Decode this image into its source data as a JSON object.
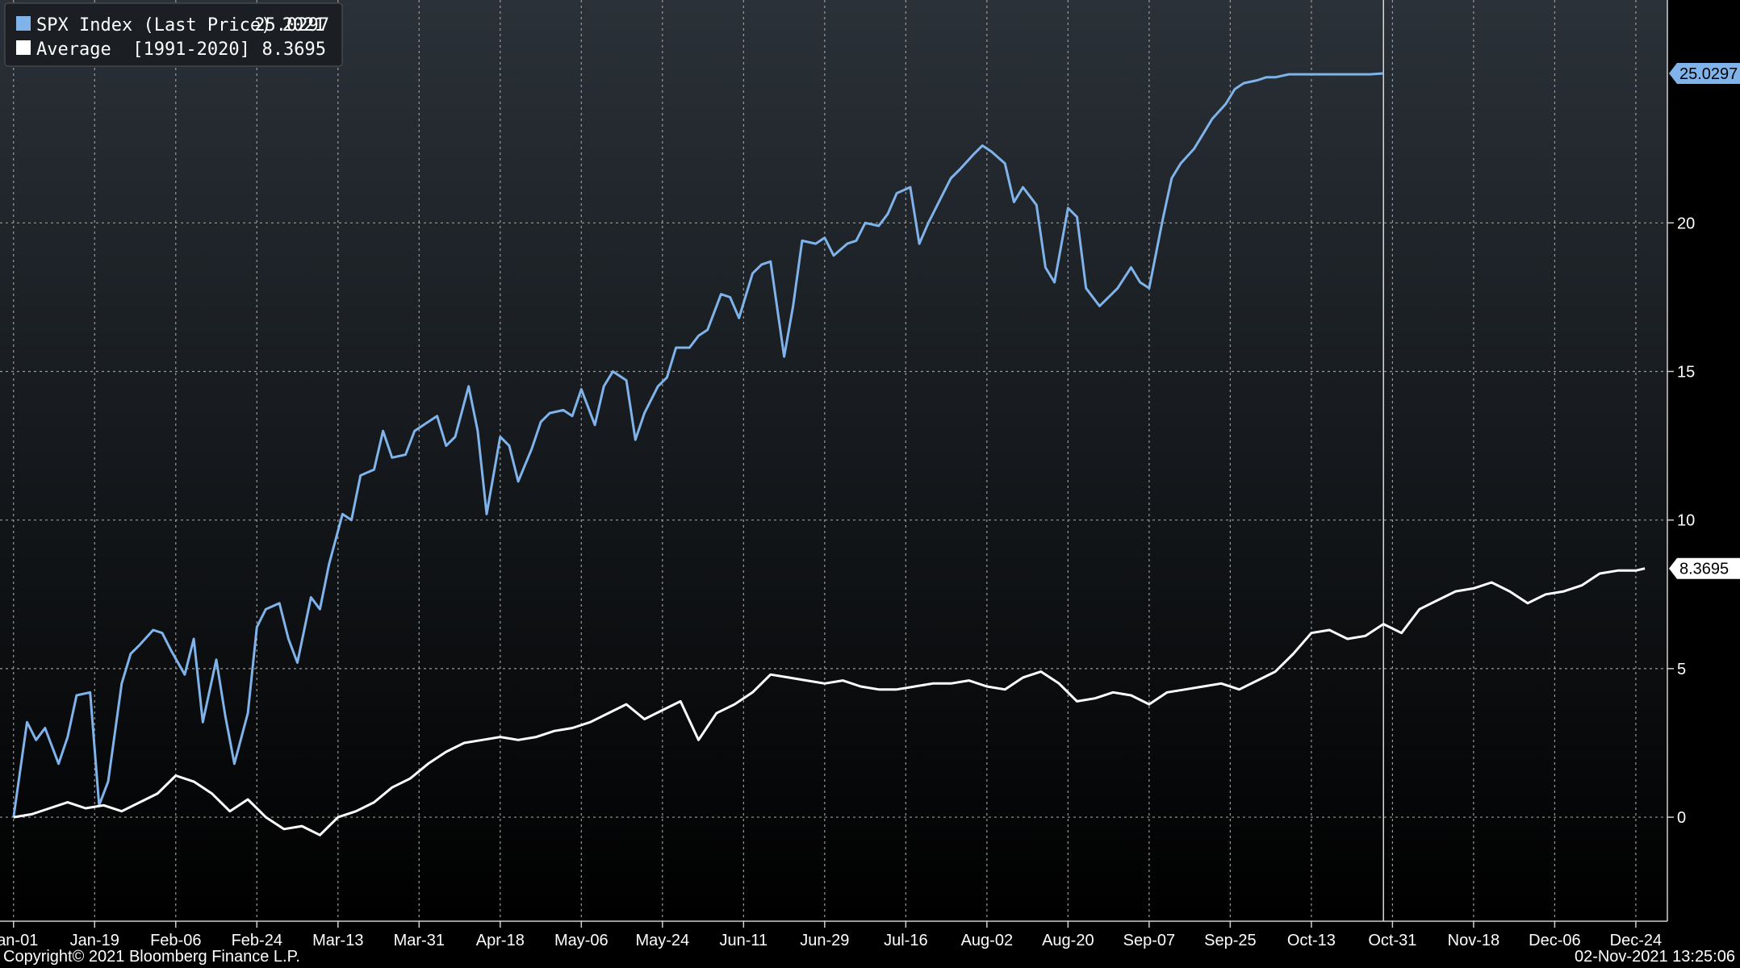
{
  "chart_data": {
    "type": "line",
    "title": "",
    "xlabel": "",
    "ylabel": "",
    "ylim": [
      -3.5,
      27.5
    ],
    "y_ticks": [
      0,
      5,
      10,
      15,
      20
    ],
    "x_tick_labels": [
      "Jan-01",
      "Jan-19",
      "Feb-06",
      "Feb-24",
      "Mar-13",
      "Mar-31",
      "Apr-18",
      "May-06",
      "May-24",
      "Jun-11",
      "Jun-29",
      "Jul-16",
      "Aug-02",
      "Aug-20",
      "Sep-07",
      "Sep-25",
      "Oct-13",
      "Oct-31",
      "Nov-18",
      "Dec-06",
      "Dec-24"
    ],
    "x_domain_days": [
      -3,
      367
    ],
    "marker_day": 304,
    "grid": true,
    "legend_position": "top-left",
    "series": [
      {
        "name": "SPX Index (Last Price) 2021",
        "legend_label": "SPX Index (Last Price) 2021",
        "last_value": "25.0297",
        "color": "#7fb3ea",
        "days": [
          0,
          3,
          5,
          7,
          10,
          12,
          14,
          17,
          19,
          21,
          24,
          26,
          28,
          31,
          33,
          35,
          38,
          40,
          42,
          45,
          47,
          49,
          52,
          54,
          56,
          59,
          61,
          63,
          66,
          68,
          70,
          73,
          75,
          77,
          80,
          82,
          84,
          87,
          89,
          91,
          94,
          96,
          98,
          101,
          103,
          105,
          108,
          110,
          112,
          115,
          117,
          119,
          122,
          124,
          126,
          129,
          131,
          133,
          136,
          138,
          140,
          143,
          145,
          147,
          150,
          152,
          154,
          157,
          159,
          161,
          164,
          166,
          168,
          171,
          173,
          175,
          178,
          180,
          182,
          185,
          187,
          189,
          192,
          194,
          196,
          199,
          201,
          203,
          206,
          208,
          210,
          213,
          215,
          217,
          220,
          222,
          224,
          227,
          229,
          231,
          234,
          236,
          238,
          241,
          243,
          245,
          248,
          250,
          252,
          255,
          257,
          259,
          262,
          264,
          266,
          269,
          271,
          273,
          276,
          278,
          280,
          283,
          285,
          287,
          290,
          292,
          294,
          297,
          299,
          301,
          304
        ],
        "values": [
          0.0,
          3.2,
          2.6,
          3.0,
          1.8,
          2.7,
          4.1,
          4.2,
          0.4,
          1.2,
          4.5,
          5.5,
          5.8,
          6.3,
          6.2,
          5.6,
          4.8,
          6.0,
          3.2,
          5.3,
          3.4,
          1.8,
          3.5,
          6.4,
          7.0,
          7.2,
          6.0,
          5.2,
          7.4,
          7.0,
          8.5,
          10.2,
          10.0,
          11.5,
          11.7,
          13.0,
          12.1,
          12.2,
          13.0,
          13.2,
          13.5,
          12.5,
          12.8,
          14.5,
          13.0,
          10.2,
          12.8,
          12.5,
          11.3,
          12.4,
          13.3,
          13.6,
          13.7,
          13.5,
          14.4,
          13.2,
          14.5,
          15.0,
          14.7,
          12.7,
          13.6,
          14.5,
          14.8,
          15.8,
          15.8,
          16.2,
          16.4,
          17.6,
          17.5,
          16.8,
          18.3,
          18.6,
          18.7,
          15.5,
          17.2,
          19.4,
          19.3,
          19.5,
          18.9,
          19.3,
          19.4,
          20.0,
          19.9,
          20.3,
          21.0,
          21.2,
          19.3,
          20.0,
          20.9,
          21.5,
          21.8,
          22.3,
          22.6,
          22.4,
          22.0,
          20.7,
          21.2,
          20.6,
          18.5,
          18.0,
          20.5,
          20.2,
          17.8,
          17.2,
          17.5,
          17.8,
          18.5,
          18.0,
          17.8,
          20.1,
          21.5,
          22.0,
          22.5,
          23.0,
          23.5,
          24.0,
          24.5,
          24.7,
          24.8,
          24.9,
          24.9,
          25.0,
          25.0,
          25.0,
          25.0,
          25.0,
          25.0,
          25.0,
          25.0,
          25.0,
          25.03
        ]
      },
      {
        "name": "Average [1991-2020]",
        "legend_label": "Average  [1991-2020]",
        "last_value": "8.3695",
        "color": "#ffffff",
        "days": [
          0,
          4,
          8,
          12,
          16,
          20,
          24,
          28,
          32,
          36,
          40,
          44,
          48,
          52,
          56,
          60,
          64,
          68,
          72,
          76,
          80,
          84,
          88,
          92,
          96,
          100,
          104,
          108,
          112,
          116,
          120,
          124,
          128,
          132,
          136,
          140,
          144,
          148,
          152,
          156,
          160,
          164,
          168,
          172,
          176,
          180,
          184,
          188,
          192,
          196,
          200,
          204,
          208,
          212,
          216,
          220,
          224,
          228,
          232,
          236,
          240,
          244,
          248,
          252,
          256,
          260,
          264,
          268,
          272,
          276,
          280,
          284,
          288,
          292,
          296,
          300,
          304,
          308,
          312,
          316,
          320,
          324,
          328,
          332,
          336,
          340,
          344,
          348,
          352,
          356,
          360,
          362
        ],
        "values": [
          0.0,
          0.1,
          0.3,
          0.5,
          0.3,
          0.4,
          0.2,
          0.5,
          0.8,
          1.4,
          1.2,
          0.8,
          0.2,
          0.6,
          0.0,
          -0.4,
          -0.3,
          -0.6,
          0.0,
          0.2,
          0.5,
          1.0,
          1.3,
          1.8,
          2.2,
          2.5,
          2.6,
          2.7,
          2.6,
          2.7,
          2.9,
          3.0,
          3.2,
          3.5,
          3.8,
          3.3,
          3.6,
          3.9,
          2.6,
          3.5,
          3.8,
          4.2,
          4.8,
          4.7,
          4.6,
          4.5,
          4.6,
          4.4,
          4.3,
          4.3,
          4.4,
          4.5,
          4.5,
          4.6,
          4.4,
          4.3,
          4.7,
          4.9,
          4.5,
          3.9,
          4.0,
          4.2,
          4.1,
          3.8,
          4.2,
          4.3,
          4.4,
          4.5,
          4.3,
          4.6,
          4.9,
          5.5,
          6.2,
          6.3,
          6.0,
          6.1,
          6.5,
          6.2,
          7.0,
          7.3,
          7.6,
          7.7,
          7.9,
          7.6,
          7.2,
          7.5,
          7.6,
          7.8,
          8.2,
          8.3,
          8.3,
          8.37
        ]
      }
    ]
  },
  "footer": {
    "copyright": "Copyright© 2021 Bloomberg Finance L.P.",
    "timestamp": "02-Nov-2021 13:25:06"
  },
  "colors": {
    "background_top": "#2a3138",
    "background_bottom": "#000000",
    "grid": "#9a9a9a",
    "marker_line": "#d8d8d8"
  }
}
